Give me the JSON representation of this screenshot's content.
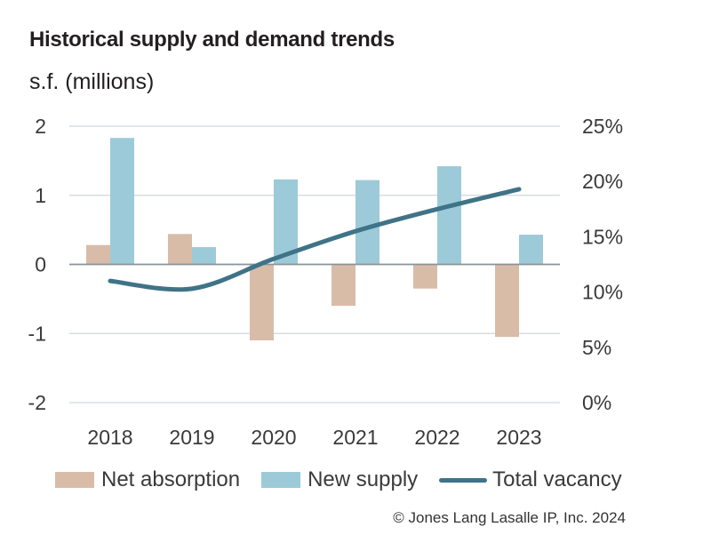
{
  "chart_data": {
    "type": "bar",
    "title": "Historical supply and demand trends",
    "ylabel": "s.f. (millions)",
    "categories": [
      "2018",
      "2019",
      "2020",
      "2021",
      "2022",
      "2023"
    ],
    "series": [
      {
        "name": "Net absorption",
        "kind": "bar",
        "axis": "left",
        "color": "#d9bca8",
        "values": [
          0.28,
          0.44,
          -1.1,
          -0.6,
          -0.35,
          -1.05
        ]
      },
      {
        "name": "New supply",
        "kind": "bar",
        "axis": "left",
        "color": "#9ccad8",
        "values": [
          1.83,
          0.25,
          1.23,
          1.22,
          1.42,
          0.43
        ]
      },
      {
        "name": "Total vacancy",
        "kind": "line",
        "axis": "right",
        "color": "#3f7387",
        "values": [
          0.11,
          0.103,
          0.13,
          0.155,
          0.175,
          0.193
        ]
      }
    ],
    "left_axis": {
      "ylim": [
        -2,
        2
      ],
      "ticks": [
        2,
        1,
        0,
        -1,
        -2
      ],
      "tick_labels": [
        "2",
        "1",
        "0",
        "-1",
        "-2"
      ]
    },
    "right_axis": {
      "ylim": [
        0,
        0.25
      ],
      "ticks": [
        0.25,
        0.2,
        0.15,
        0.1,
        0.05,
        0
      ],
      "tick_labels": [
        "25%",
        "20%",
        "15%",
        "10%",
        "5%",
        "0%"
      ]
    },
    "grid": true,
    "legend": "bottom",
    "source": "© Jones Lang Lasalle IP, Inc. 2024"
  }
}
